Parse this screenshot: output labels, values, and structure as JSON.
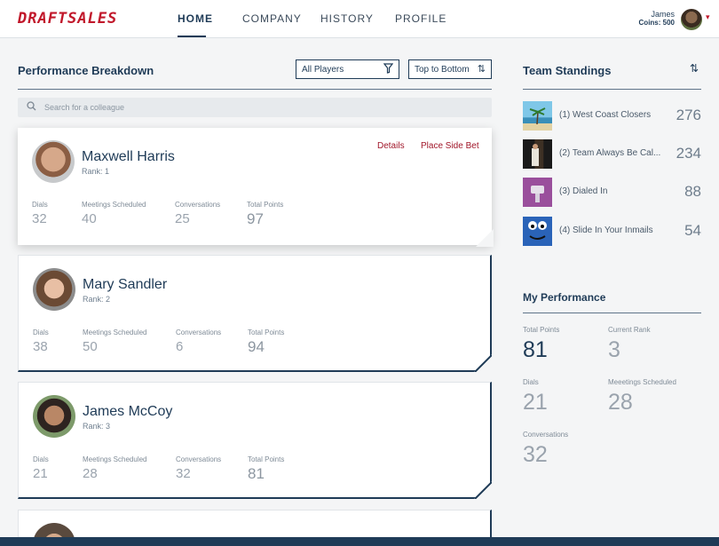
{
  "header": {
    "logo": "DRAFTSALES",
    "nav": [
      "HOME",
      "COMPANY",
      "HISTORY",
      "PROFILE"
    ],
    "user_name": "James",
    "coins": "Coins: 500"
  },
  "breakdown": {
    "title": "Performance Breakdown",
    "filter_label": "All Players",
    "sort_label": "Top to Bottom",
    "search_placeholder": "Search for a colleague",
    "stat_labels": [
      "Dials",
      "Meetings Scheduled",
      "Conversations",
      "Total Points"
    ],
    "actions": {
      "details": "Details",
      "side_bet": "Place Side Bet"
    },
    "players": [
      {
        "name": "Maxwell Harris",
        "rank": "Rank: 1",
        "dials": "32",
        "meetings": "40",
        "conversations": "25",
        "points": "97"
      },
      {
        "name": "Mary Sandler",
        "rank": "Rank: 2",
        "dials": "38",
        "meetings": "50",
        "conversations": "6",
        "points": "94"
      },
      {
        "name": "James McCoy",
        "rank": "Rank: 3",
        "dials": "21",
        "meetings": "28",
        "conversations": "32",
        "points": "81"
      }
    ]
  },
  "standings": {
    "title": "Team Standings",
    "teams": [
      {
        "name": "(1) West Coast Closers",
        "points": "276"
      },
      {
        "name": "(2) Team Always Be Cal...",
        "points": "234"
      },
      {
        "name": "(3) Dialed In",
        "points": "88"
      },
      {
        "name": "(4) Slide In Your Inmails",
        "points": "54"
      }
    ]
  },
  "my_performance": {
    "title": "My Performance",
    "total_points_label": "Total Points",
    "total_points": "81",
    "current_rank_label": "Current Rank",
    "current_rank": "3",
    "dials_label": "Dials",
    "dials": "21",
    "meetings_label": "Meeetings Scheduled",
    "meetings": "28",
    "conversations_label": "Conversations",
    "conversations": "32"
  }
}
